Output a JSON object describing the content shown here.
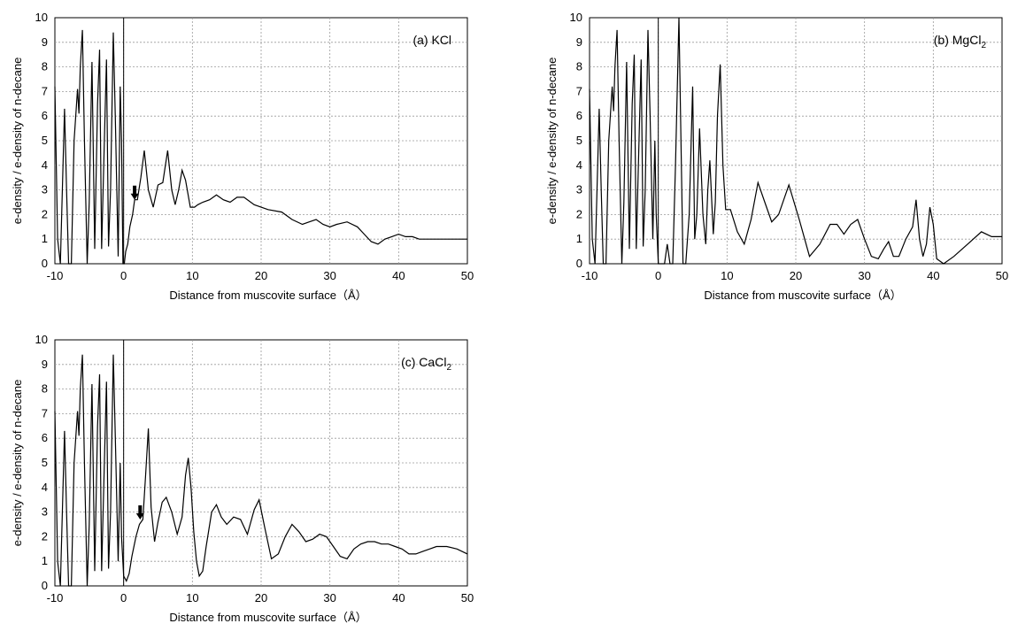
{
  "chart_data": [
    {
      "type": "line",
      "panel_label": "(a) KCl",
      "xlabel": "Distance from muscovite surface（Å）",
      "ylabel": "e-density / e-density of n-decane",
      "xlim": [
        -10,
        50
      ],
      "ylim": [
        0,
        10
      ],
      "xticks": [
        -10,
        0,
        10,
        20,
        30,
        40,
        50
      ],
      "yticks": [
        0,
        1,
        2,
        3,
        4,
        5,
        6,
        7,
        8,
        9,
        10
      ],
      "grid": true,
      "annotation": {
        "type": "arrow",
        "x": 1.6,
        "y": 2.6
      },
      "series": [
        {
          "color": "#000000",
          "x": [
            -10,
            -9.6,
            -9.2,
            -8.6,
            -8.3,
            -8.0,
            -7.6,
            -7.2,
            -6.7,
            -6.5,
            -6.3,
            -6.0,
            -5.7,
            -5.3,
            -5.0,
            -4.6,
            -4.2,
            -3.8,
            -3.5,
            -3.2,
            -2.8,
            -2.5,
            -2.2,
            -1.9,
            -1.5,
            -1.2,
            -0.8,
            -0.5,
            -0.3,
            -0.1,
            0.1,
            0.3,
            0.6,
            0.9,
            1.3,
            1.6,
            2.0,
            2.5,
            3.0,
            3.6,
            4.3,
            5.0,
            5.7,
            6.4,
            7.0,
            7.5,
            8.0,
            8.5,
            9.0,
            9.7,
            10.3,
            10.8,
            11.5,
            12.5,
            13.5,
            14.5,
            15.5,
            16.5,
            17.5,
            19.0,
            21.0,
            23.0,
            24.5,
            26.0,
            27.0,
            28.0,
            29.0,
            30.0,
            31.0,
            32.5,
            34.0,
            35.0,
            36.0,
            37.0,
            38.0,
            39.0,
            40.0,
            41.0,
            42.0,
            43.0,
            44.0,
            45.0,
            47.0,
            50.0
          ],
          "y": [
            7.2,
            1.0,
            0.0,
            6.3,
            3.0,
            0.0,
            0.0,
            5.0,
            7.1,
            6.1,
            8.0,
            9.5,
            5.0,
            0.0,
            2.5,
            8.2,
            0.6,
            6.5,
            8.7,
            0.6,
            5.0,
            8.3,
            0.7,
            3.0,
            9.4,
            5.9,
            0.3,
            7.2,
            5.0,
            0.0,
            0.0,
            0.5,
            0.8,
            1.5,
            2.0,
            2.6,
            2.6,
            3.5,
            4.6,
            3.0,
            2.3,
            3.2,
            3.3,
            4.6,
            3.0,
            2.4,
            3.0,
            3.8,
            3.4,
            2.3,
            2.3,
            2.4,
            2.5,
            2.6,
            2.8,
            2.6,
            2.5,
            2.7,
            2.7,
            2.4,
            2.2,
            2.1,
            1.8,
            1.6,
            1.7,
            1.8,
            1.6,
            1.5,
            1.6,
            1.7,
            1.5,
            1.2,
            0.9,
            0.8,
            1.0,
            1.1,
            1.2,
            1.1,
            1.1,
            1.0,
            1.0,
            1.0,
            1.0,
            1.0
          ]
        }
      ]
    },
    {
      "type": "line",
      "panel_label": "(b) MgCl2",
      "xlabel": "Distance from muscovite surface（Å）",
      "ylabel": "e-density / e-density of n-decane",
      "xlim": [
        -10,
        50
      ],
      "ylim": [
        0,
        10
      ],
      "xticks": [
        -10,
        0,
        10,
        20,
        30,
        40,
        50
      ],
      "yticks": [
        0,
        1,
        2,
        3,
        4,
        5,
        6,
        7,
        8,
        9,
        10
      ],
      "grid": true,
      "series": [
        {
          "color": "#000000",
          "x": [
            -10,
            -9.6,
            -9.2,
            -8.6,
            -8.3,
            -8.0,
            -7.6,
            -7.2,
            -6.7,
            -6.5,
            -6.3,
            -6.0,
            -5.7,
            -5.3,
            -5.0,
            -4.6,
            -4.2,
            -3.8,
            -3.5,
            -3.2,
            -2.8,
            -2.5,
            -2.2,
            -1.9,
            -1.5,
            -1.2,
            -0.8,
            -0.5,
            -0.3,
            0.0,
            0.4,
            0.9,
            1.3,
            1.7,
            2.1,
            2.5,
            3.0,
            3.3,
            3.6,
            4.0,
            4.5,
            5.0,
            5.3,
            5.6,
            6.0,
            6.5,
            6.9,
            7.2,
            7.5,
            8.0,
            8.3,
            8.6,
            9.0,
            9.4,
            9.8,
            10.5,
            11.5,
            12.5,
            13.5,
            14.5,
            15.5,
            16.5,
            17.5,
            19.0,
            20.5,
            22.0,
            23.5,
            25.0,
            26.0,
            27.0,
            28.0,
            29.0,
            30.0,
            31.0,
            32.0,
            32.8,
            33.5,
            34.2,
            35.0,
            36.0,
            37.0,
            37.5,
            38.0,
            38.5,
            39.0,
            39.5,
            40.0,
            40.5,
            41.5,
            43.0,
            45.0,
            47.0,
            48.5,
            50.0
          ],
          "y": [
            7.1,
            1.0,
            0.0,
            6.3,
            3.0,
            0.0,
            0.0,
            5.0,
            7.2,
            6.2,
            8.0,
            9.5,
            5.0,
            0.0,
            2.5,
            8.2,
            0.6,
            6.5,
            8.5,
            0.6,
            5.0,
            8.3,
            0.7,
            3.0,
            9.5,
            6.2,
            1.0,
            5.0,
            2.0,
            0.0,
            0.0,
            0.0,
            0.8,
            0.0,
            0.0,
            4.0,
            10.0,
            5.0,
            0.0,
            0.0,
            2.0,
            7.2,
            1.0,
            2.0,
            5.5,
            2.0,
            0.8,
            3.0,
            4.2,
            1.2,
            2.5,
            6.0,
            8.1,
            4.0,
            2.2,
            2.2,
            1.3,
            0.8,
            1.8,
            3.3,
            2.5,
            1.7,
            2.0,
            3.2,
            1.8,
            0.3,
            0.8,
            1.6,
            1.6,
            1.2,
            1.6,
            1.8,
            1.0,
            0.3,
            0.2,
            0.6,
            0.9,
            0.3,
            0.3,
            1.0,
            1.5,
            2.6,
            1.0,
            0.3,
            0.8,
            2.3,
            1.6,
            0.2,
            0.0,
            0.3,
            0.8,
            1.3,
            1.1,
            1.1
          ]
        }
      ]
    },
    {
      "type": "line",
      "panel_label": "(c) CaCl2",
      "xlabel": "Distance from muscovite surface（Å）",
      "ylabel": "e-density / e-density of n-decane",
      "xlim": [
        -10,
        50
      ],
      "ylim": [
        0,
        10
      ],
      "xticks": [
        -10,
        0,
        10,
        20,
        30,
        40,
        50
      ],
      "yticks": [
        0,
        1,
        2,
        3,
        4,
        5,
        6,
        7,
        8,
        9,
        10
      ],
      "grid": true,
      "annotation": {
        "type": "arrow",
        "x": 2.4,
        "y": 2.7
      },
      "series": [
        {
          "color": "#000000",
          "x": [
            -10,
            -9.6,
            -9.2,
            -8.6,
            -8.3,
            -8.0,
            -7.6,
            -7.2,
            -6.7,
            -6.5,
            -6.3,
            -6.0,
            -5.7,
            -5.3,
            -5.0,
            -4.6,
            -4.2,
            -3.8,
            -3.5,
            -3.2,
            -2.8,
            -2.5,
            -2.2,
            -1.9,
            -1.5,
            -1.2,
            -0.8,
            -0.5,
            -0.3,
            0.0,
            0.4,
            0.8,
            1.2,
            1.8,
            2.3,
            2.8,
            3.2,
            3.6,
            4.0,
            4.5,
            5.0,
            5.6,
            6.2,
            7.0,
            7.8,
            8.5,
            9.0,
            9.4,
            9.8,
            10.2,
            10.6,
            11.0,
            11.5,
            12.0,
            12.8,
            13.5,
            14.2,
            15.0,
            16.0,
            17.0,
            18.0,
            19.0,
            19.7,
            20.5,
            21.5,
            22.5,
            23.5,
            24.5,
            25.5,
            26.5,
            27.5,
            28.5,
            29.5,
            30.5,
            31.5,
            32.5,
            33.5,
            34.5,
            35.5,
            36.5,
            37.5,
            38.5,
            39.5,
            40.5,
            41.5,
            42.5,
            43.5,
            44.5,
            45.5,
            47.0,
            48.5,
            50.0
          ],
          "y": [
            7.1,
            1.0,
            0.0,
            6.3,
            3.0,
            0.0,
            0.0,
            5.0,
            7.1,
            6.1,
            8.0,
            9.4,
            5.0,
            0.0,
            2.5,
            8.2,
            0.6,
            6.5,
            8.6,
            0.6,
            5.0,
            8.3,
            0.7,
            3.0,
            9.4,
            6.0,
            1.0,
            5.0,
            2.0,
            0.4,
            0.2,
            0.5,
            1.2,
            2.0,
            2.5,
            2.7,
            4.5,
            6.4,
            3.2,
            1.8,
            2.6,
            3.4,
            3.6,
            3.0,
            2.1,
            2.8,
            4.5,
            5.2,
            4.0,
            2.2,
            1.0,
            0.4,
            0.6,
            1.6,
            3.0,
            3.3,
            2.8,
            2.5,
            2.8,
            2.7,
            2.1,
            3.1,
            3.5,
            2.4,
            1.1,
            1.3,
            2.0,
            2.5,
            2.2,
            1.8,
            1.9,
            2.1,
            2.0,
            1.6,
            1.2,
            1.1,
            1.5,
            1.7,
            1.8,
            1.8,
            1.7,
            1.7,
            1.6,
            1.5,
            1.3,
            1.3,
            1.4,
            1.5,
            1.6,
            1.6,
            1.5,
            1.3
          ]
        }
      ]
    }
  ]
}
